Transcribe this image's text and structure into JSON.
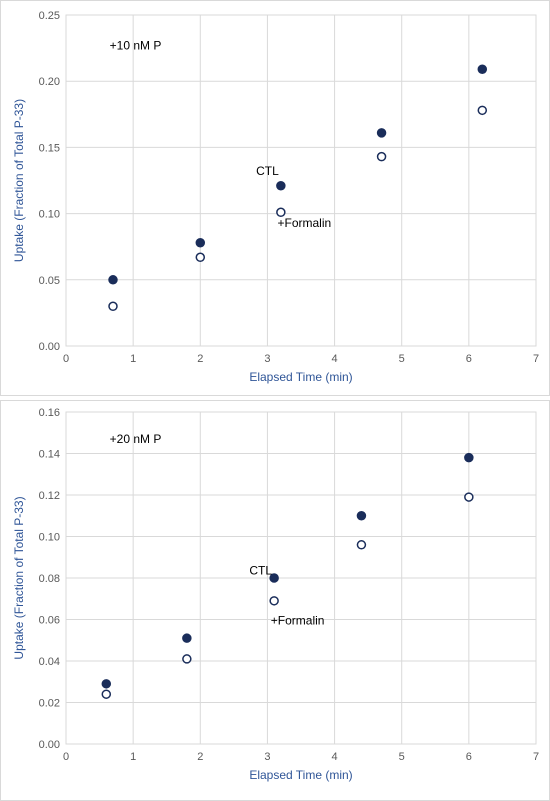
{
  "colors": {
    "marker": "#1a2d5a",
    "axis_title": "#2f5597",
    "tick_label": "#595959",
    "grid": "#d9d9d9"
  },
  "chart_data": [
    {
      "type": "scatter",
      "title": "",
      "xlabel": "Elapsed Time (min)",
      "ylabel": "Uptake (Fraction of Total P-33)",
      "xlim": [
        0,
        7
      ],
      "ylim": [
        0,
        0.25
      ],
      "xticks": [
        "0",
        "1",
        "2",
        "3",
        "4",
        "5",
        "6",
        "7"
      ],
      "yticks": [
        "0.00",
        "0.05",
        "0.10",
        "0.15",
        "0.20",
        "0.25"
      ],
      "grid": true,
      "annotations": [
        {
          "text": "+10 nM P",
          "x": 0.65,
          "y": 0.227
        },
        {
          "text": "CTL",
          "x": 3.0,
          "y": 0.132
        },
        {
          "text": "+Formalin",
          "x": 3.55,
          "y": 0.093
        }
      ],
      "series": [
        {
          "marker": "filled",
          "x": [
            0.7,
            2.0,
            3.2,
            4.7,
            6.2
          ],
          "y": [
            0.05,
            0.078,
            0.121,
            0.161,
            0.209
          ]
        },
        {
          "marker": "open",
          "x": [
            0.7,
            2.0,
            3.2,
            4.7,
            6.2
          ],
          "y": [
            0.03,
            0.067,
            0.101,
            0.143,
            0.178
          ]
        }
      ]
    },
    {
      "type": "scatter",
      "title": "",
      "xlabel": "Elapsed Time (min)",
      "ylabel": "Uptake (Fraction of Total P-33)",
      "xlim": [
        0,
        7
      ],
      "ylim": [
        0,
        0.16
      ],
      "xticks": [
        "0",
        "1",
        "2",
        "3",
        "4",
        "5",
        "6",
        "7"
      ],
      "yticks": [
        "0.00",
        "0.02",
        "0.04",
        "0.06",
        "0.08",
        "0.10",
        "0.12",
        "0.14",
        "0.16"
      ],
      "grid": true,
      "annotations": [
        {
          "text": "+20 nM P",
          "x": 0.65,
          "y": 0.147
        },
        {
          "text": "CTL",
          "x": 2.9,
          "y": 0.0835
        },
        {
          "text": "+Formalin",
          "x": 3.45,
          "y": 0.0595
        }
      ],
      "series": [
        {
          "marker": "filled",
          "x": [
            0.6,
            1.8,
            3.1,
            4.4,
            6.0
          ],
          "y": [
            0.029,
            0.051,
            0.08,
            0.11,
            0.138
          ]
        },
        {
          "marker": "open",
          "x": [
            0.6,
            1.8,
            3.1,
            4.4,
            6.0
          ],
          "y": [
            0.024,
            0.041,
            0.069,
            0.096,
            0.119
          ]
        }
      ]
    }
  ]
}
